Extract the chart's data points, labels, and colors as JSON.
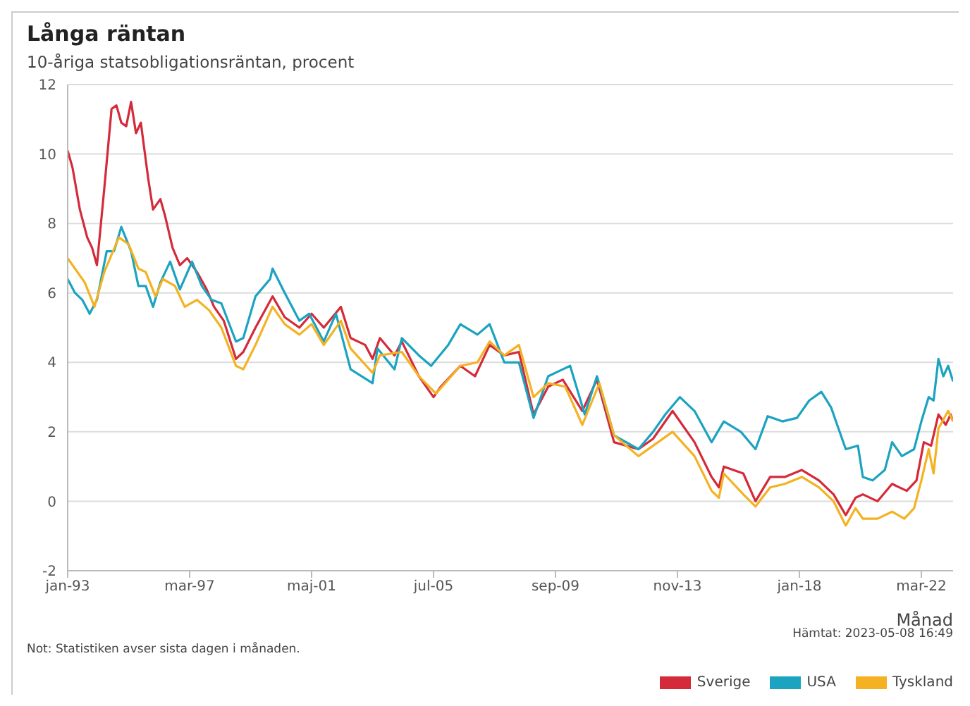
{
  "chart_data": {
    "type": "line",
    "title": "Långa räntan",
    "subtitle": "10-åriga statsobligationsräntan, procent",
    "xlabel": "Månad",
    "annotations": [
      "Not: Statistiken avser sista dagen i månaden.",
      "Hämtat: 2023-05-08 16:49"
    ],
    "xlim": [
      "1993-01",
      "2023-04"
    ],
    "xticks": [
      {
        "value": "1993-01",
        "label": "jan-93"
      },
      {
        "value": "1997-03",
        "label": "mar-97"
      },
      {
        "value": "2001-05",
        "label": "maj-01"
      },
      {
        "value": "2005-07",
        "label": "jul-05"
      },
      {
        "value": "2009-09",
        "label": "sep-09"
      },
      {
        "value": "2013-11",
        "label": "nov-13"
      },
      {
        "value": "2018-01",
        "label": "jan-18"
      },
      {
        "value": "2022-03",
        "label": "mar-22"
      }
    ],
    "ylim": [
      -2,
      12
    ],
    "yticks": [
      -2,
      0,
      2,
      4,
      6,
      8,
      10,
      12
    ],
    "grid": "y",
    "legend": "bottom right",
    "line_style": "solid",
    "series": [
      {
        "name": "Sverige",
        "color": "#d42a3a",
        "x": [
          "1993-01",
          "1993-03",
          "1993-06",
          "1993-09",
          "1993-11",
          "1994-01",
          "1994-04",
          "1994-07",
          "1994-09",
          "1994-11",
          "1995-01",
          "1995-03",
          "1995-05",
          "1995-07",
          "1995-10",
          "1995-12",
          "1996-03",
          "1996-05",
          "1996-08",
          "1996-11",
          "1997-02",
          "1997-06",
          "1997-10",
          "1998-01",
          "1998-05",
          "1998-10",
          "1999-01",
          "1999-06",
          "2000-01",
          "2000-06",
          "2000-12",
          "2001-05",
          "2001-10",
          "2002-05",
          "2002-09",
          "2003-03",
          "2003-06",
          "2003-09",
          "2004-03",
          "2004-06",
          "2005-01",
          "2005-07",
          "2005-10",
          "2006-06",
          "2006-12",
          "2007-06",
          "2007-12",
          "2008-06",
          "2008-12",
          "2009-06",
          "2009-12",
          "2010-08",
          "2011-02",
          "2011-09",
          "2012-07",
          "2013-01",
          "2013-09",
          "2014-06",
          "2015-01",
          "2015-04",
          "2015-06",
          "2016-02",
          "2016-07",
          "2017-01",
          "2017-07",
          "2018-02",
          "2018-09",
          "2019-03",
          "2019-08",
          "2019-12",
          "2020-03",
          "2020-09",
          "2021-03",
          "2021-09",
          "2022-01",
          "2022-04",
          "2022-07",
          "2022-10",
          "2023-01",
          "2023-03",
          "2023-04"
        ],
        "values": [
          10.1,
          9.6,
          8.4,
          7.6,
          7.3,
          6.8,
          9.0,
          11.3,
          11.4,
          10.9,
          10.8,
          11.5,
          10.6,
          10.9,
          9.3,
          8.4,
          8.7,
          8.2,
          7.3,
          6.8,
          7.0,
          6.6,
          6.1,
          5.6,
          5.2,
          4.1,
          4.3,
          5.0,
          5.9,
          5.3,
          5.0,
          5.4,
          5.0,
          5.6,
          4.7,
          4.5,
          4.1,
          4.7,
          4.2,
          4.6,
          3.6,
          3.0,
          3.3,
          3.9,
          3.6,
          4.5,
          4.2,
          4.3,
          2.5,
          3.3,
          3.5,
          2.6,
          3.5,
          1.7,
          1.5,
          1.8,
          2.6,
          1.7,
          0.7,
          0.4,
          1.0,
          0.8,
          0.0,
          0.7,
          0.7,
          0.9,
          0.6,
          0.2,
          -0.4,
          0.1,
          0.2,
          0.0,
          0.5,
          0.3,
          0.6,
          1.7,
          1.6,
          2.5,
          2.2,
          2.5,
          2.3
        ]
      },
      {
        "name": "USA",
        "color": "#1ba3c0",
        "x": [
          "1993-01",
          "1993-04",
          "1993-07",
          "1993-10",
          "1994-01",
          "1994-05",
          "1994-08",
          "1994-11",
          "1995-03",
          "1995-06",
          "1995-09",
          "1995-12",
          "1996-03",
          "1996-07",
          "1996-11",
          "1997-04",
          "1997-08",
          "1997-12",
          "1998-04",
          "1998-10",
          "1999-01",
          "1999-06",
          "1999-12",
          "2000-01",
          "2000-06",
          "2000-12",
          "2001-04",
          "2001-10",
          "2002-03",
          "2002-09",
          "2003-06",
          "2003-08",
          "2004-03",
          "2004-06",
          "2005-01",
          "2005-06",
          "2006-01",
          "2006-06",
          "2007-01",
          "2007-06",
          "2007-12",
          "2008-06",
          "2008-12",
          "2009-06",
          "2009-12",
          "2010-03",
          "2010-09",
          "2011-02",
          "2011-09",
          "2012-07",
          "2013-01",
          "2013-06",
          "2013-12",
          "2014-06",
          "2015-01",
          "2015-06",
          "2016-01",
          "2016-07",
          "2016-12",
          "2017-06",
          "2017-12",
          "2018-05",
          "2018-10",
          "2019-02",
          "2019-05",
          "2019-08",
          "2020-01",
          "2020-03",
          "2020-07",
          "2020-12",
          "2021-03",
          "2021-07",
          "2021-12",
          "2022-03",
          "2022-06",
          "2022-08",
          "2022-10",
          "2022-12",
          "2023-02",
          "2023-04"
        ],
        "values": [
          6.4,
          6.0,
          5.8,
          5.4,
          5.8,
          7.2,
          7.2,
          7.9,
          7.2,
          6.2,
          6.2,
          5.6,
          6.3,
          6.9,
          6.1,
          6.9,
          6.2,
          5.8,
          5.7,
          4.6,
          4.7,
          5.9,
          6.4,
          6.7,
          6.0,
          5.2,
          5.4,
          4.6,
          5.4,
          3.8,
          3.4,
          4.4,
          3.8,
          4.7,
          4.2,
          3.9,
          4.5,
          5.1,
          4.8,
          5.1,
          4.0,
          4.0,
          2.4,
          3.6,
          3.8,
          3.9,
          2.5,
          3.6,
          1.9,
          1.5,
          2.0,
          2.5,
          3.0,
          2.6,
          1.7,
          2.3,
          2.0,
          1.5,
          2.45,
          2.3,
          2.4,
          2.9,
          3.15,
          2.7,
          2.1,
          1.5,
          1.6,
          0.7,
          0.6,
          0.9,
          1.7,
          1.3,
          1.5,
          2.3,
          3.0,
          2.9,
          4.1,
          3.6,
          3.9,
          3.45
        ]
      },
      {
        "name": "Tyskland",
        "color": "#f4b223",
        "x": [
          "1993-01",
          "1993-04",
          "1993-08",
          "1993-12",
          "1994-04",
          "1994-07",
          "1994-10",
          "1995-02",
          "1995-06",
          "1995-09",
          "1996-01",
          "1996-04",
          "1996-09",
          "1997-01",
          "1997-06",
          "1997-11",
          "1998-04",
          "1998-10",
          "1999-01",
          "1999-06",
          "2000-01",
          "2000-06",
          "2000-12",
          "2001-05",
          "2001-10",
          "2002-05",
          "2002-09",
          "2003-06",
          "2003-09",
          "2004-06",
          "2005-01",
          "2005-08",
          "2006-06",
          "2007-01",
          "2007-06",
          "2007-12",
          "2008-06",
          "2008-12",
          "2009-06",
          "2010-01",
          "2010-08",
          "2011-03",
          "2011-09",
          "2012-07",
          "2013-01",
          "2013-09",
          "2014-06",
          "2015-01",
          "2015-04",
          "2015-06",
          "2016-02",
          "2016-07",
          "2017-01",
          "2017-07",
          "2018-02",
          "2018-09",
          "2019-03",
          "2019-08",
          "2019-12",
          "2020-03",
          "2020-09",
          "2021-03",
          "2021-08",
          "2021-12",
          "2022-03",
          "2022-06",
          "2022-08",
          "2022-10",
          "2023-02",
          "2023-04"
        ],
        "values": [
          7.0,
          6.7,
          6.3,
          5.6,
          6.6,
          7.1,
          7.6,
          7.4,
          6.7,
          6.6,
          5.9,
          6.4,
          6.2,
          5.6,
          5.8,
          5.5,
          5.0,
          3.9,
          3.8,
          4.5,
          5.6,
          5.1,
          4.8,
          5.1,
          4.5,
          5.2,
          4.4,
          3.7,
          4.2,
          4.3,
          3.6,
          3.1,
          3.9,
          4.0,
          4.6,
          4.2,
          4.5,
          3.0,
          3.4,
          3.3,
          2.2,
          3.4,
          1.9,
          1.3,
          1.6,
          2.0,
          1.3,
          0.3,
          0.1,
          0.8,
          0.2,
          -0.15,
          0.4,
          0.5,
          0.7,
          0.4,
          0.0,
          -0.7,
          -0.2,
          -0.5,
          -0.5,
          -0.3,
          -0.5,
          -0.2,
          0.6,
          1.5,
          0.8,
          2.1,
          2.6,
          2.3
        ]
      }
    ]
  }
}
